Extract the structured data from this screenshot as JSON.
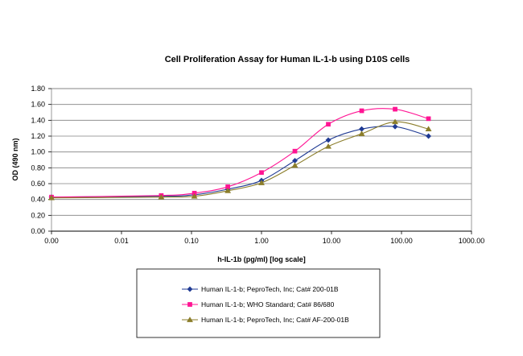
{
  "chart_data": {
    "type": "line",
    "title": "Cell Proliferation Assay for Human IL-1-b using D10S cells",
    "xlabel": "h-IL-1b (pg/ml) [log scale]",
    "ylabel": "OD (490 nm)",
    "x_scale": "log",
    "xlim": [
      0.001,
      1000
    ],
    "ylim": [
      0,
      1.8
    ],
    "x_tick_labels": [
      "0.00",
      "0.01",
      "0.10",
      "1.00",
      "10.00",
      "100.00",
      "1000.00"
    ],
    "y_tick_labels": [
      "0.00",
      "0.20",
      "0.40",
      "0.60",
      "0.80",
      "1.00",
      "1.20",
      "1.40",
      "1.60",
      "1.80"
    ],
    "grid": "horizontal",
    "legend_position": "bottom",
    "series": [
      {
        "name": "Human IL-1-b; PeproTech, Inc; Cat# 200-01B",
        "color": "#1f3a93",
        "marker": "diamond",
        "x": [
          0.001,
          0.037,
          0.11,
          0.33,
          1.0,
          3.0,
          9.0,
          27.0,
          81.0,
          243.0
        ],
        "y": [
          0.43,
          0.44,
          0.46,
          0.53,
          0.64,
          0.89,
          1.15,
          1.29,
          1.32,
          1.2
        ]
      },
      {
        "name": "Human IL-1-b; WHO Standard; Cat# 86/680",
        "color": "#ff1493",
        "marker": "square",
        "x": [
          0.001,
          0.037,
          0.11,
          0.33,
          1.0,
          3.0,
          9.0,
          27.0,
          81.0,
          243.0
        ],
        "y": [
          0.43,
          0.45,
          0.48,
          0.56,
          0.74,
          1.01,
          1.35,
          1.52,
          1.54,
          1.42
        ]
      },
      {
        "name": "Human IL-1-b; PeproTech, Inc; Cat# AF-200-01B",
        "color": "#8b7d2a",
        "marker": "triangle",
        "x": [
          0.001,
          0.037,
          0.11,
          0.33,
          1.0,
          3.0,
          9.0,
          27.0,
          81.0,
          243.0
        ],
        "y": [
          0.42,
          0.43,
          0.44,
          0.51,
          0.61,
          0.83,
          1.07,
          1.23,
          1.38,
          1.29
        ]
      }
    ]
  }
}
